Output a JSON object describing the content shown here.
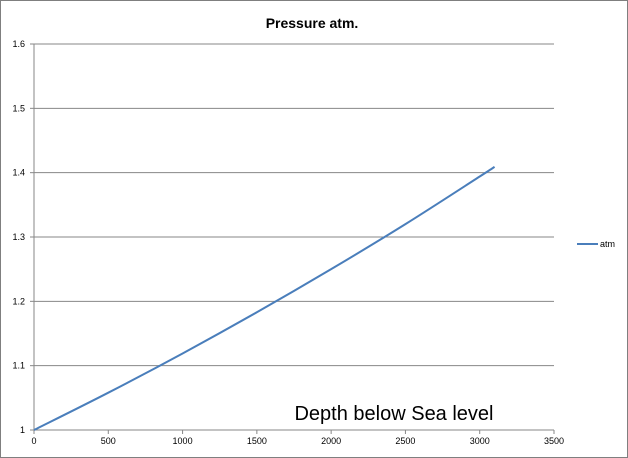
{
  "chart_data": {
    "type": "line",
    "title": "Pressure atm.",
    "xlabel": "",
    "ylabel": "",
    "xlim": [
      0,
      3500
    ],
    "ylim": [
      1,
      1.6
    ],
    "x_ticks": [
      0,
      500,
      1000,
      1500,
      2000,
      2500,
      3000,
      3500
    ],
    "y_ticks": [
      1,
      1.1,
      1.2,
      1.3,
      1.4,
      1.5,
      1.6
    ],
    "x_tick_labels": [
      "0",
      "500",
      "1000",
      "1500",
      "2000",
      "2500",
      "3000",
      "3500"
    ],
    "y_tick_labels": [
      "1",
      "1.1",
      "1.2",
      "1.3",
      "1.4",
      "1.5",
      "1.6"
    ],
    "grid": "horizontal",
    "legend_position": "right",
    "series": [
      {
        "name": "atm",
        "color": "#4a7ebb",
        "x": [
          0,
          500,
          1000,
          1500,
          2000,
          2500,
          3000,
          3100
        ],
        "y": [
          1.0,
          1.058,
          1.119,
          1.183,
          1.25,
          1.32,
          1.394,
          1.409
        ]
      }
    ],
    "annotations": [
      {
        "text": "Depth below Sea level"
      }
    ]
  }
}
